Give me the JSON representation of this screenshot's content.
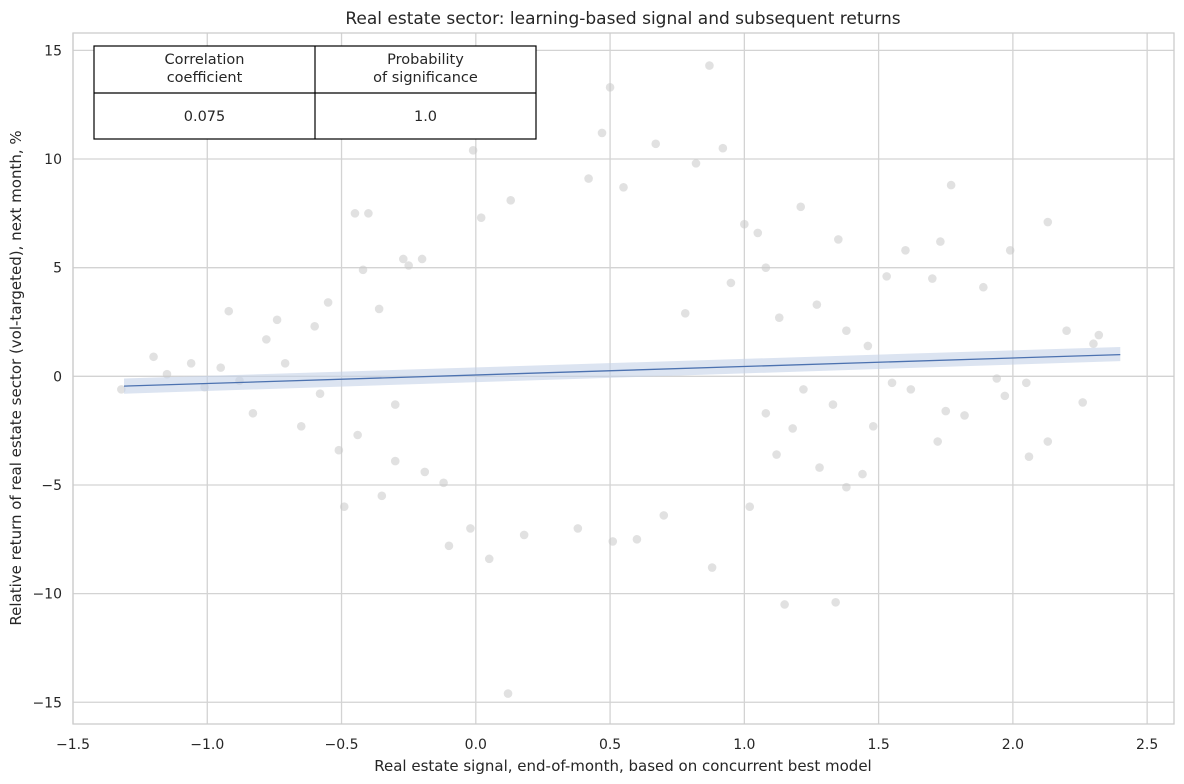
{
  "chart_data": {
    "type": "scatter",
    "title": "Real estate sector: learning-based signal and subsequent returns",
    "xlabel": "Real estate signal, end-of-month, based on concurrent best model",
    "ylabel": "Relative return of real estate sector (vol-targeted), next month, %",
    "xlim": [
      -1.5,
      2.6
    ],
    "ylim": [
      -16,
      15.8
    ],
    "x_ticks": [
      -1.5,
      -1.0,
      -0.5,
      0.0,
      0.5,
      1.0,
      1.5,
      2.0,
      2.5
    ],
    "x_tick_labels": [
      "−1.5",
      "−1.0",
      "−0.5",
      "0.0",
      "0.5",
      "1.0",
      "1.5",
      "2.0",
      "2.5"
    ],
    "y_ticks": [
      -15,
      -10,
      -5,
      0,
      5,
      10,
      15
    ],
    "y_tick_labels": [
      "−15",
      "−10",
      "−5",
      "0",
      "5",
      "10",
      "15"
    ],
    "grid": true,
    "colors": {
      "points": "#c8c8c8",
      "regression": "#4c72b0",
      "band": "#c5d2e8",
      "grid": "#d3d3d3"
    },
    "regression": {
      "x": [
        -1.31,
        2.4
      ],
      "y": [
        -0.45,
        1.0
      ],
      "ci_lower": [
        -0.8,
        0.7
      ],
      "ci_upper": [
        -0.1,
        1.35
      ]
    },
    "points": [
      [
        0.87,
        14.3
      ],
      [
        0.5,
        13.3
      ],
      [
        0.47,
        11.2
      ],
      [
        -0.01,
        10.4
      ],
      [
        0.92,
        10.5
      ],
      [
        0.82,
        9.8
      ],
      [
        0.67,
        10.7
      ],
      [
        1.77,
        8.8
      ],
      [
        0.02,
        7.3
      ],
      [
        -0.45,
        7.5
      ],
      [
        -0.4,
        7.5
      ],
      [
        0.13,
        8.1
      ],
      [
        1.0,
        7.0
      ],
      [
        1.21,
        7.8
      ],
      [
        2.13,
        7.1
      ],
      [
        0.55,
        8.7
      ],
      [
        0.42,
        9.1
      ],
      [
        1.05,
        6.6
      ],
      [
        1.35,
        6.3
      ],
      [
        1.99,
        5.8
      ],
      [
        -0.2,
        5.4
      ],
      [
        -0.25,
        5.1
      ],
      [
        -1.2,
        0.9
      ],
      [
        -0.92,
        3.0
      ],
      [
        -1.32,
        -0.6
      ],
      [
        -1.06,
        0.6
      ],
      [
        -0.78,
        1.7
      ],
      [
        -0.83,
        -1.7
      ],
      [
        -0.65,
        -2.3
      ],
      [
        1.89,
        4.1
      ],
      [
        2.32,
        1.9
      ],
      [
        2.2,
        2.1
      ],
      [
        1.72,
        -3.0
      ],
      [
        2.13,
        -3.0
      ],
      [
        2.06,
        -3.7
      ],
      [
        2.26,
        -1.2
      ],
      [
        1.75,
        -1.6
      ],
      [
        1.82,
        -1.8
      ],
      [
        -0.35,
        -5.5
      ],
      [
        -0.49,
        -6.0
      ],
      [
        -0.1,
        -7.8
      ],
      [
        0.05,
        -8.4
      ],
      [
        0.12,
        -14.6
      ],
      [
        0.88,
        -8.8
      ],
      [
        1.15,
        -10.5
      ],
      [
        1.34,
        -10.4
      ],
      [
        1.02,
        -6.0
      ],
      [
        1.44,
        -4.5
      ],
      [
        1.38,
        -5.1
      ],
      [
        0.6,
        -7.5
      ],
      [
        0.38,
        -7.0
      ],
      [
        -0.02,
        -7.0
      ],
      [
        0.7,
        -6.4
      ],
      [
        0.51,
        -7.6
      ],
      [
        0.18,
        -7.3
      ],
      [
        1.73,
        6.2
      ],
      [
        1.7,
        4.5
      ],
      [
        1.53,
        4.6
      ],
      [
        1.6,
        5.8
      ],
      [
        2.3,
        1.5
      ],
      [
        2.05,
        -0.3
      ],
      [
        1.46,
        1.4
      ],
      [
        1.55,
        -0.3
      ],
      [
        1.62,
        -0.6
      ],
      [
        1.94,
        -0.1
      ],
      [
        1.97,
        -0.9
      ],
      [
        1.38,
        2.1
      ],
      [
        1.27,
        3.3
      ],
      [
        1.13,
        2.7
      ],
      [
        1.08,
        5.0
      ],
      [
        0.95,
        4.3
      ],
      [
        0.78,
        2.9
      ],
      [
        1.18,
        -2.4
      ],
      [
        1.28,
        -4.2
      ],
      [
        1.12,
        -3.6
      ],
      [
        1.48,
        -2.3
      ],
      [
        1.33,
        -1.3
      ],
      [
        1.22,
        -0.6
      ],
      [
        1.08,
        -1.7
      ],
      [
        -1.15,
        0.1
      ],
      [
        -1.01,
        -0.5
      ],
      [
        -0.95,
        0.4
      ],
      [
        -0.71,
        0.6
      ],
      [
        -0.58,
        -0.8
      ],
      [
        -0.88,
        -0.2
      ],
      [
        -0.74,
        2.6
      ],
      [
        -0.6,
        2.3
      ],
      [
        -0.55,
        3.4
      ],
      [
        -0.42,
        4.9
      ],
      [
        -0.27,
        5.4
      ],
      [
        -0.36,
        3.1
      ],
      [
        -0.3,
        -1.3
      ],
      [
        -0.44,
        -2.7
      ],
      [
        -0.51,
        -3.4
      ],
      [
        -0.3,
        -3.9
      ],
      [
        -0.19,
        -4.4
      ],
      [
        -0.12,
        -4.9
      ]
    ],
    "correlation_table": {
      "headers": [
        "Correlation\ncoefficient",
        "Probability\nof significance"
      ],
      "values": [
        "0.075",
        "1.0"
      ]
    }
  }
}
